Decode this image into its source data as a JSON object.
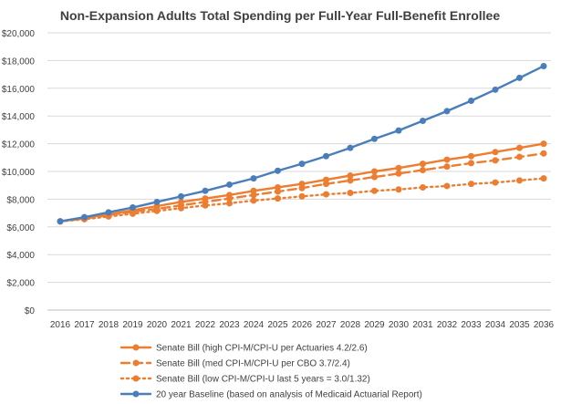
{
  "chart_data": {
    "type": "line",
    "title": "Non-Expansion Adults Total Spending per Full-Year Full-Benefit Enrollee",
    "xlabel": "",
    "ylabel": "",
    "ylim": [
      0,
      20000
    ],
    "y_ticks": [
      0,
      2000,
      4000,
      6000,
      8000,
      10000,
      12000,
      14000,
      16000,
      18000,
      20000
    ],
    "y_tick_labels": [
      "$0",
      "$2,000",
      "$4,000",
      "$6,000",
      "$8,000",
      "$10,000",
      "$12,000",
      "$14,000",
      "$16,000",
      "$18,000",
      "$20,000"
    ],
    "x": [
      "2016",
      "2017",
      "2018",
      "2019",
      "2020",
      "2021",
      "2022",
      "2023",
      "2024",
      "2025",
      "2026",
      "2027",
      "2028",
      "2029",
      "2030",
      "2031",
      "2032",
      "2033",
      "2034",
      "2035",
      "2036"
    ],
    "grid": true,
    "legend_position": "bottom",
    "series": [
      {
        "name": "Senate Bill (high CPI-M/CPI-U per Actuaries 4.2/2.6)",
        "color": "#ED7D31",
        "style": "solid",
        "values": [
          6400,
          6650,
          6900,
          7200,
          7500,
          7800,
          8050,
          8300,
          8600,
          8850,
          9100,
          9400,
          9700,
          10000,
          10250,
          10550,
          10850,
          11100,
          11400,
          11700,
          12000
        ]
      },
      {
        "name": "Senate Bill (med CPI-M/CPI-U per CBO 3.7/2.4)",
        "color": "#ED7D31",
        "style": "dashed",
        "values": [
          6400,
          6600,
          6850,
          7100,
          7300,
          7550,
          7800,
          8050,
          8300,
          8550,
          8800,
          9100,
          9350,
          9600,
          9850,
          10100,
          10350,
          10600,
          10800,
          11050,
          11300
        ]
      },
      {
        "name": "Senate Bill (low CPI-M/CPI-U last 5 years = 3.0/1.32)",
        "color": "#ED7D31",
        "style": "dotted",
        "values": [
          6400,
          6550,
          6750,
          6950,
          7150,
          7350,
          7550,
          7700,
          7900,
          8050,
          8200,
          8350,
          8450,
          8600,
          8700,
          8850,
          8950,
          9100,
          9200,
          9350,
          9500
        ]
      },
      {
        "name": "20 year Baseline (based on analysis of Medicaid Actuarial Report)",
        "color": "#4A7EBB",
        "style": "solid",
        "values": [
          6400,
          6700,
          7050,
          7400,
          7800,
          8200,
          8600,
          9050,
          9500,
          10050,
          10550,
          11100,
          11700,
          12350,
          12950,
          13650,
          14350,
          15100,
          15900,
          16750,
          17600
        ]
      }
    ]
  }
}
